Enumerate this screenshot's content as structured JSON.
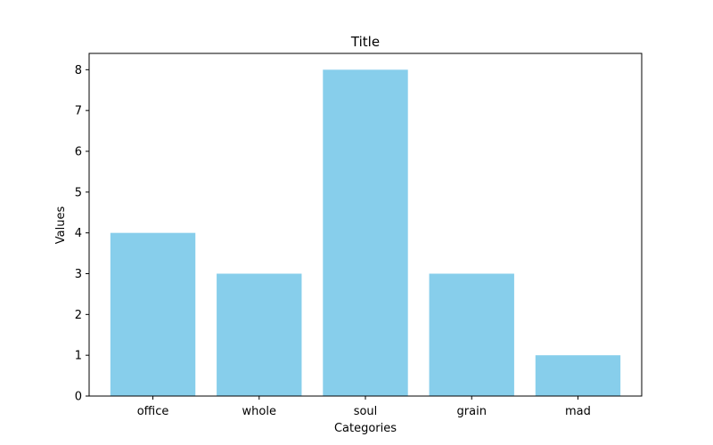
{
  "chart_data": {
    "type": "bar",
    "title": "Title",
    "xlabel": "Categories",
    "ylabel": "Values",
    "categories": [
      "office",
      "whole",
      "soul",
      "grain",
      "mad"
    ],
    "values": [
      4,
      3,
      8,
      3,
      1
    ],
    "ylim": [
      0,
      8.4
    ],
    "yticks": [
      0,
      1,
      2,
      3,
      4,
      5,
      6,
      7,
      8
    ],
    "bar_color": "#87CEEB",
    "grid": false,
    "legend": "none"
  }
}
